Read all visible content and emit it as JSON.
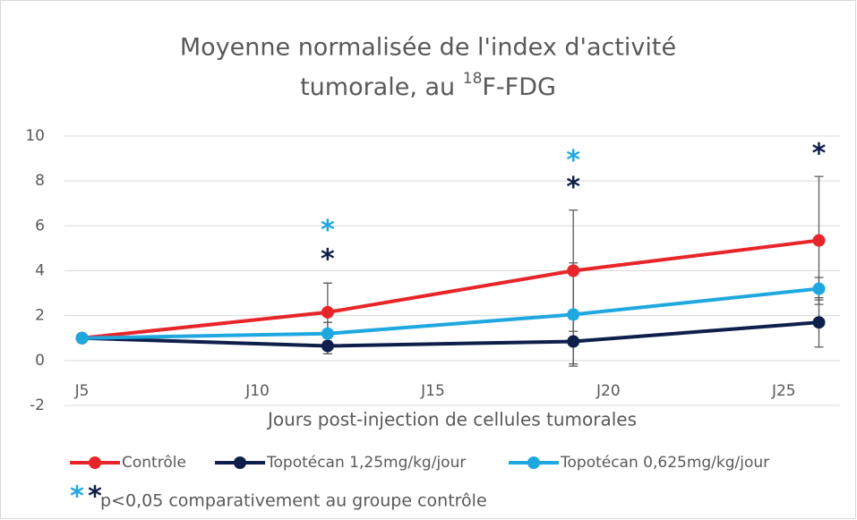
{
  "chart_data": {
    "type": "line",
    "title": {
      "line1": "Moyenne normalisée de l'index d'activité",
      "line2": "tumorale, au ",
      "superscript": "18",
      "line2_end": "F-FDG"
    },
    "x_label": "Jours post-injection de cellules tumorales",
    "x": [
      5,
      12,
      19,
      26
    ],
    "xlim": [
      4.5,
      26.6
    ],
    "xticks": [
      {
        "value": 5,
        "label": "J5"
      },
      {
        "value": 10,
        "label": "J10"
      },
      {
        "value": 15,
        "label": "J15"
      },
      {
        "value": 20,
        "label": "J20"
      },
      {
        "value": 25,
        "label": "J25"
      }
    ],
    "ylim": [
      -2,
      10
    ],
    "yticks": [
      -2,
      0,
      2,
      4,
      6,
      8,
      10
    ],
    "grid": true,
    "legend": "bottom",
    "series": [
      {
        "name": "Contrôle",
        "color": "#e8262a",
        "values": [
          1,
          2.15,
          4,
          5.35
        ],
        "errors": [
          null,
          1.3,
          2.7,
          2.85
        ]
      },
      {
        "name": "Topotécan 1,25mg/kg/jour",
        "color": "#0d1f4a",
        "values": [
          1,
          0.65,
          0.85,
          1.7
        ],
        "errors": [
          null,
          0.35,
          1.0,
          1.1
        ]
      },
      {
        "name": "Topotécan 0,625mg/kg/jour",
        "color": "#1fa8e0",
        "values": [
          1,
          1.2,
          2.05,
          3.2
        ],
        "errors": [
          null,
          0.5,
          2.3,
          0.5
        ]
      }
    ],
    "annotations": [
      {
        "text": "*",
        "x": 12,
        "y": 6.0,
        "color": "#1fa8e0"
      },
      {
        "text": "*",
        "x": 12,
        "y": 4.7,
        "color": "#0d1f4a"
      },
      {
        "text": "*",
        "x": 19,
        "y": 9.1,
        "color": "#1fa8e0"
      },
      {
        "text": "*",
        "x": 19,
        "y": 7.9,
        "color": "#0d1f4a"
      },
      {
        "text": "*",
        "x": 26,
        "y": 9.4,
        "color": "#0d1f4a"
      }
    ],
    "footnote": {
      "symbols": [
        {
          "text": "*",
          "color": "#1fa8e0"
        },
        {
          "text": "*",
          "color": "#0d1f4a"
        }
      ],
      "text": "p<0,05 comparativement au groupe contrôle"
    }
  }
}
